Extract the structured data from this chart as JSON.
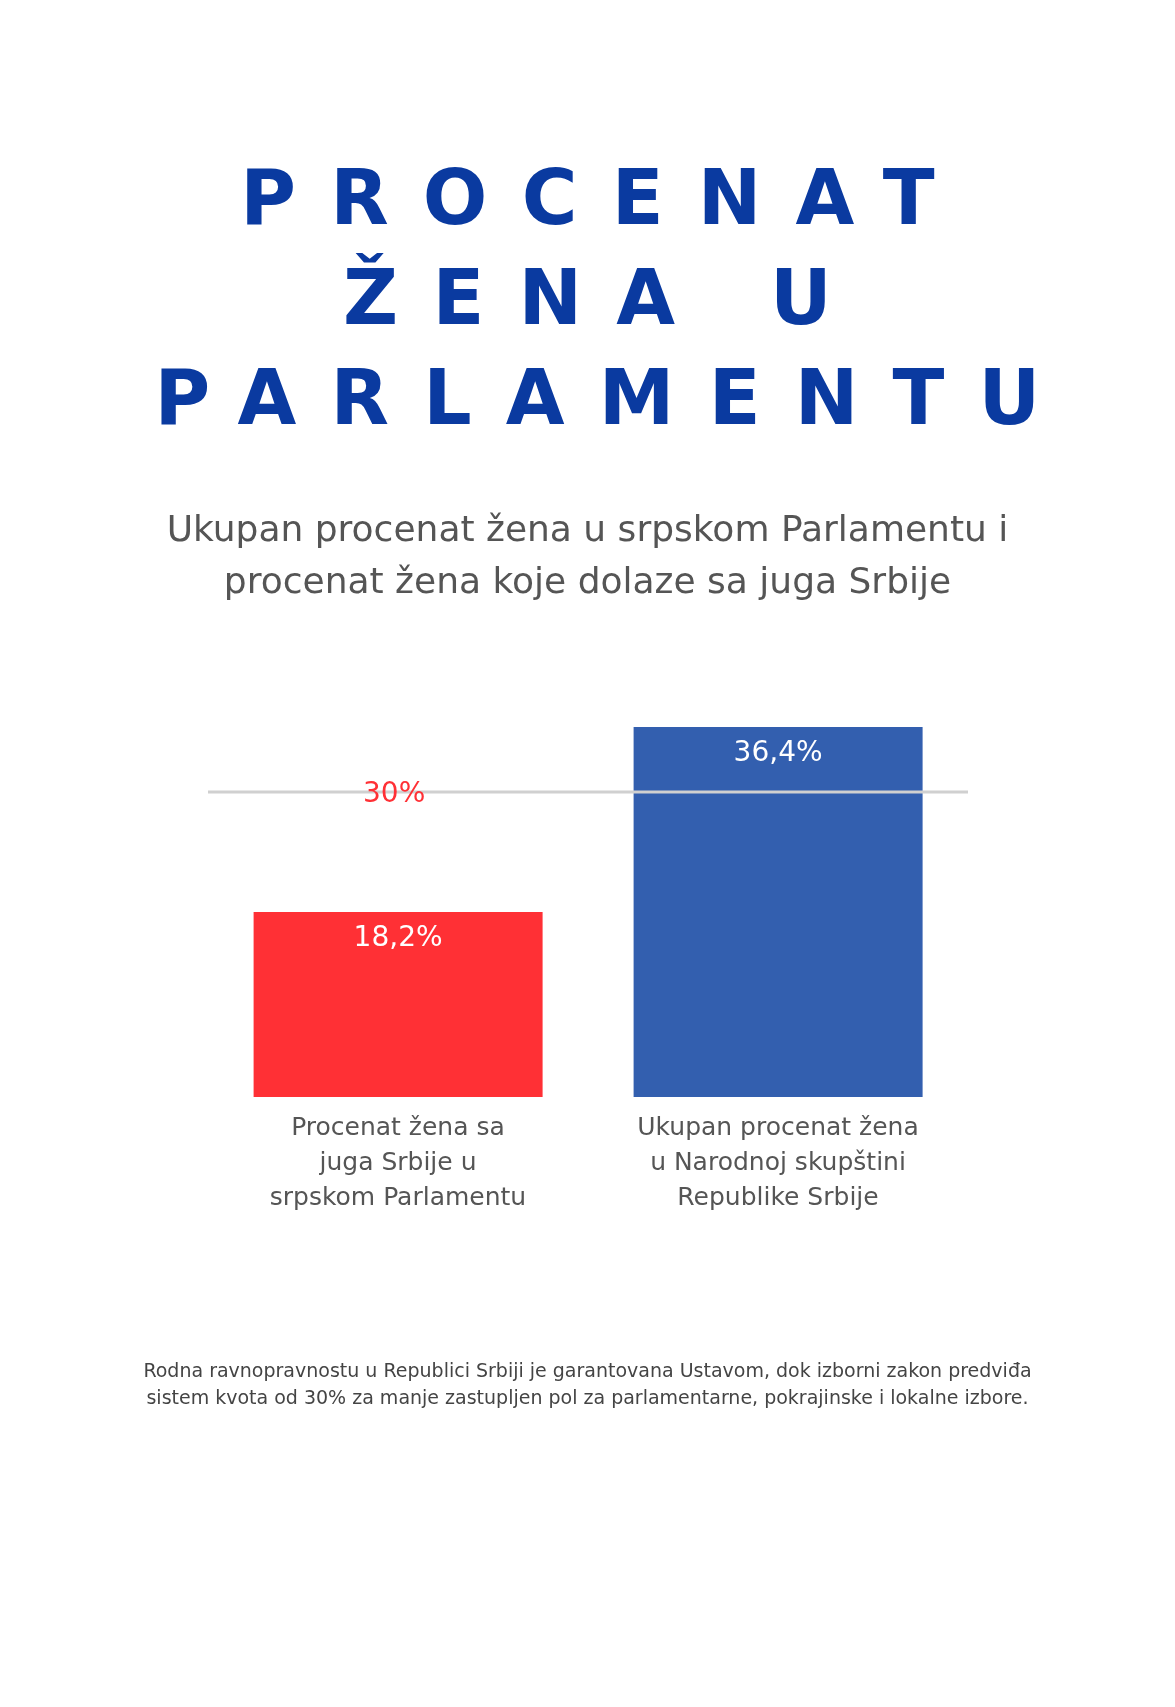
{
  "chart_data": {
    "type": "bar",
    "title": "PROCENAT ŽENA U PARLAMENTU",
    "subtitle": "Ukupan procenat žena u srpskom Parlamentu i procenat žena koje dolaze sa juga Srbije",
    "categories": [
      "Procenat žena sa juga Srbije u srpskom Parlamentu",
      "Ukupan procenat žena u Narodnoj skupštini Republike Srbije"
    ],
    "values": [
      18.2,
      36.4
    ],
    "colors": [
      "#ff3035",
      "#335faf"
    ],
    "value_labels": [
      "18,2%",
      "36,4%"
    ],
    "ref_lines": [
      {
        "axis": "y",
        "value": 30,
        "label": "30%",
        "color": "#d0d0d0"
      }
    ],
    "annotations": [
      "Rodna ravnopravnostu u Republici Srbiji je garantovana Ustavom, dok izborni zakon predviđa sistem kvota od 30% za manje zastupljen pol za parlamentarne, pokrajinske i lokalne izbore."
    ],
    "legend": false
  }
}
